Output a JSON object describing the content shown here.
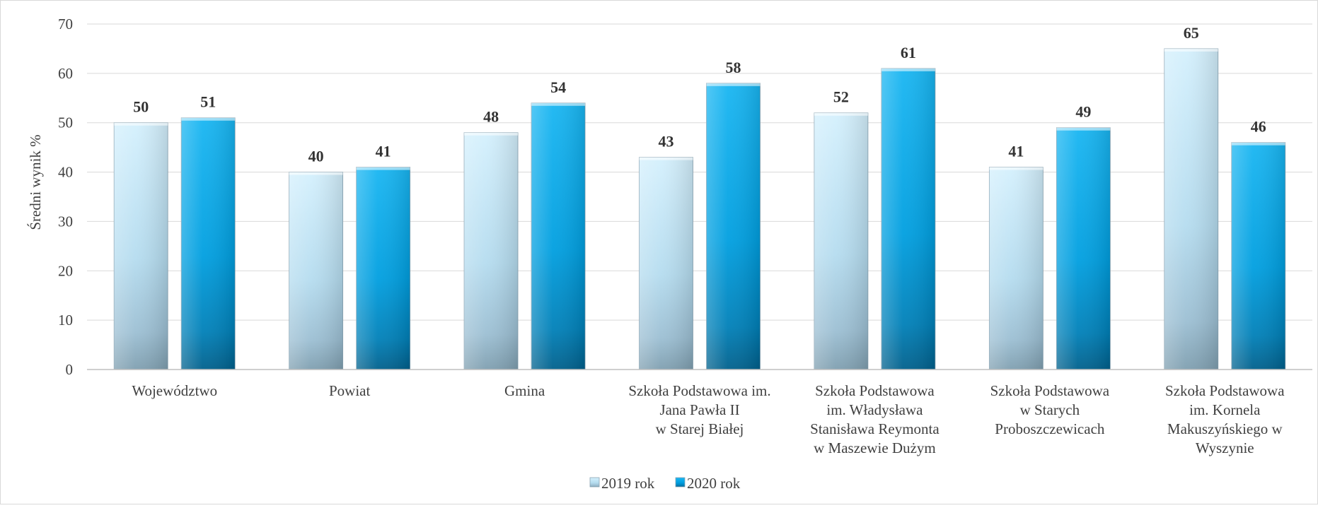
{
  "chart_data": {
    "type": "bar",
    "title": "",
    "ylabel": "Średni wynik %",
    "xlabel": "",
    "ylim": [
      0,
      70
    ],
    "yticks": [
      0,
      10,
      20,
      30,
      40,
      50,
      60,
      70
    ],
    "grid": true,
    "legend_position": "bottom",
    "categories": [
      [
        "Województwo"
      ],
      [
        "Powiat"
      ],
      [
        "Gmina"
      ],
      [
        "Szkoła Podstawowa im.",
        "Jana Pawła II",
        "w Starej Białej"
      ],
      [
        "Szkoła Podstawowa",
        "im. Władysława",
        "Stanisława Reymonta",
        "w Maszewie Dużym"
      ],
      [
        "Szkoła Podstawowa",
        "w Starych",
        "Proboszczewicach"
      ],
      [
        "Szkoła Podstawowa",
        "im. Kornela",
        "Makuszyńskiego w",
        "Wyszynie"
      ]
    ],
    "series": [
      {
        "name": "2019 rok",
        "values": [
          50,
          40,
          48,
          43,
          52,
          41,
          65
        ],
        "color": "#bfe6f8"
      },
      {
        "name": "2020 rok",
        "values": [
          51,
          41,
          54,
          58,
          61,
          49,
          46
        ],
        "color": "#00a6e8"
      }
    ]
  }
}
